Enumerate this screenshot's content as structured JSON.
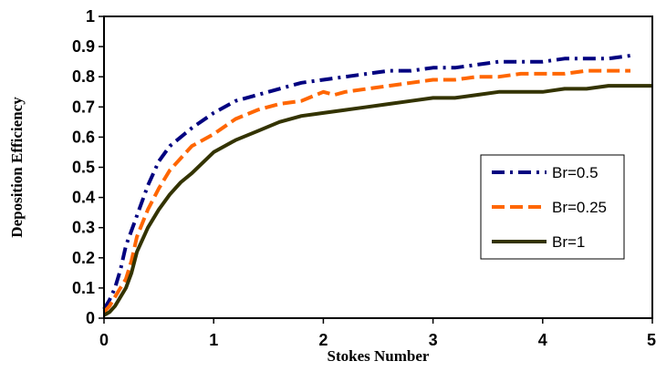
{
  "chart_data": {
    "type": "line",
    "title": "",
    "xlabel": "Stokes Number",
    "ylabel": "Deposition Efficiency",
    "xlim": [
      0,
      5
    ],
    "ylim": [
      0,
      1
    ],
    "x_ticks": [
      "0",
      "1",
      "2",
      "3",
      "4",
      "5"
    ],
    "y_ticks": [
      "0",
      "0.1",
      "0.2",
      "0.3",
      "0.4",
      "0.5",
      "0.6",
      "0.7",
      "0.8",
      "0.9",
      "1"
    ],
    "grid": false,
    "legend_position": "right",
    "series": [
      {
        "name": "Br=0.5",
        "color": "#000080",
        "dash": "dash-dot",
        "x": [
          0,
          0.05,
          0.1,
          0.15,
          0.2,
          0.25,
          0.3,
          0.4,
          0.5,
          0.6,
          0.7,
          0.8,
          1.0,
          1.2,
          1.4,
          1.6,
          1.8,
          2.0,
          2.2,
          2.4,
          2.6,
          2.8,
          3.0,
          3.2,
          3.4,
          3.6,
          3.8,
          4.0,
          4.2,
          4.4,
          4.6,
          4.8
        ],
        "y": [
          0.03,
          0.06,
          0.1,
          0.16,
          0.24,
          0.29,
          0.34,
          0.44,
          0.52,
          0.57,
          0.6,
          0.63,
          0.68,
          0.72,
          0.74,
          0.76,
          0.78,
          0.79,
          0.8,
          0.81,
          0.82,
          0.82,
          0.83,
          0.83,
          0.84,
          0.85,
          0.85,
          0.85,
          0.86,
          0.86,
          0.86,
          0.87
        ]
      },
      {
        "name": "Br=0.25",
        "color": "#ff6600",
        "dash": "dash",
        "x": [
          0,
          0.05,
          0.1,
          0.15,
          0.2,
          0.25,
          0.3,
          0.4,
          0.5,
          0.6,
          0.7,
          0.8,
          1.0,
          1.2,
          1.4,
          1.6,
          1.8,
          2.0,
          2.1,
          2.2,
          2.4,
          2.6,
          2.8,
          3.0,
          3.2,
          3.4,
          3.6,
          3.8,
          4.0,
          4.2,
          4.4,
          4.6,
          4.8
        ],
        "y": [
          0.02,
          0.04,
          0.07,
          0.1,
          0.13,
          0.19,
          0.27,
          0.36,
          0.43,
          0.49,
          0.53,
          0.57,
          0.61,
          0.66,
          0.69,
          0.71,
          0.72,
          0.75,
          0.74,
          0.75,
          0.76,
          0.77,
          0.78,
          0.79,
          0.79,
          0.8,
          0.8,
          0.81,
          0.81,
          0.81,
          0.82,
          0.82,
          0.82
        ]
      },
      {
        "name": "Br=1",
        "color": "#333300",
        "dash": "solid",
        "x": [
          0,
          0.05,
          0.1,
          0.15,
          0.2,
          0.25,
          0.3,
          0.4,
          0.5,
          0.6,
          0.7,
          0.8,
          1.0,
          1.2,
          1.4,
          1.6,
          1.8,
          2.0,
          2.2,
          2.4,
          2.6,
          2.8,
          3.0,
          3.2,
          3.4,
          3.6,
          3.8,
          4.0,
          4.2,
          4.4,
          4.6,
          4.8,
          5.0
        ],
        "y": [
          0.01,
          0.02,
          0.04,
          0.07,
          0.1,
          0.15,
          0.22,
          0.3,
          0.36,
          0.41,
          0.45,
          0.48,
          0.55,
          0.59,
          0.62,
          0.65,
          0.67,
          0.68,
          0.69,
          0.7,
          0.71,
          0.72,
          0.73,
          0.73,
          0.74,
          0.75,
          0.75,
          0.75,
          0.76,
          0.76,
          0.77,
          0.77,
          0.77
        ]
      }
    ]
  }
}
